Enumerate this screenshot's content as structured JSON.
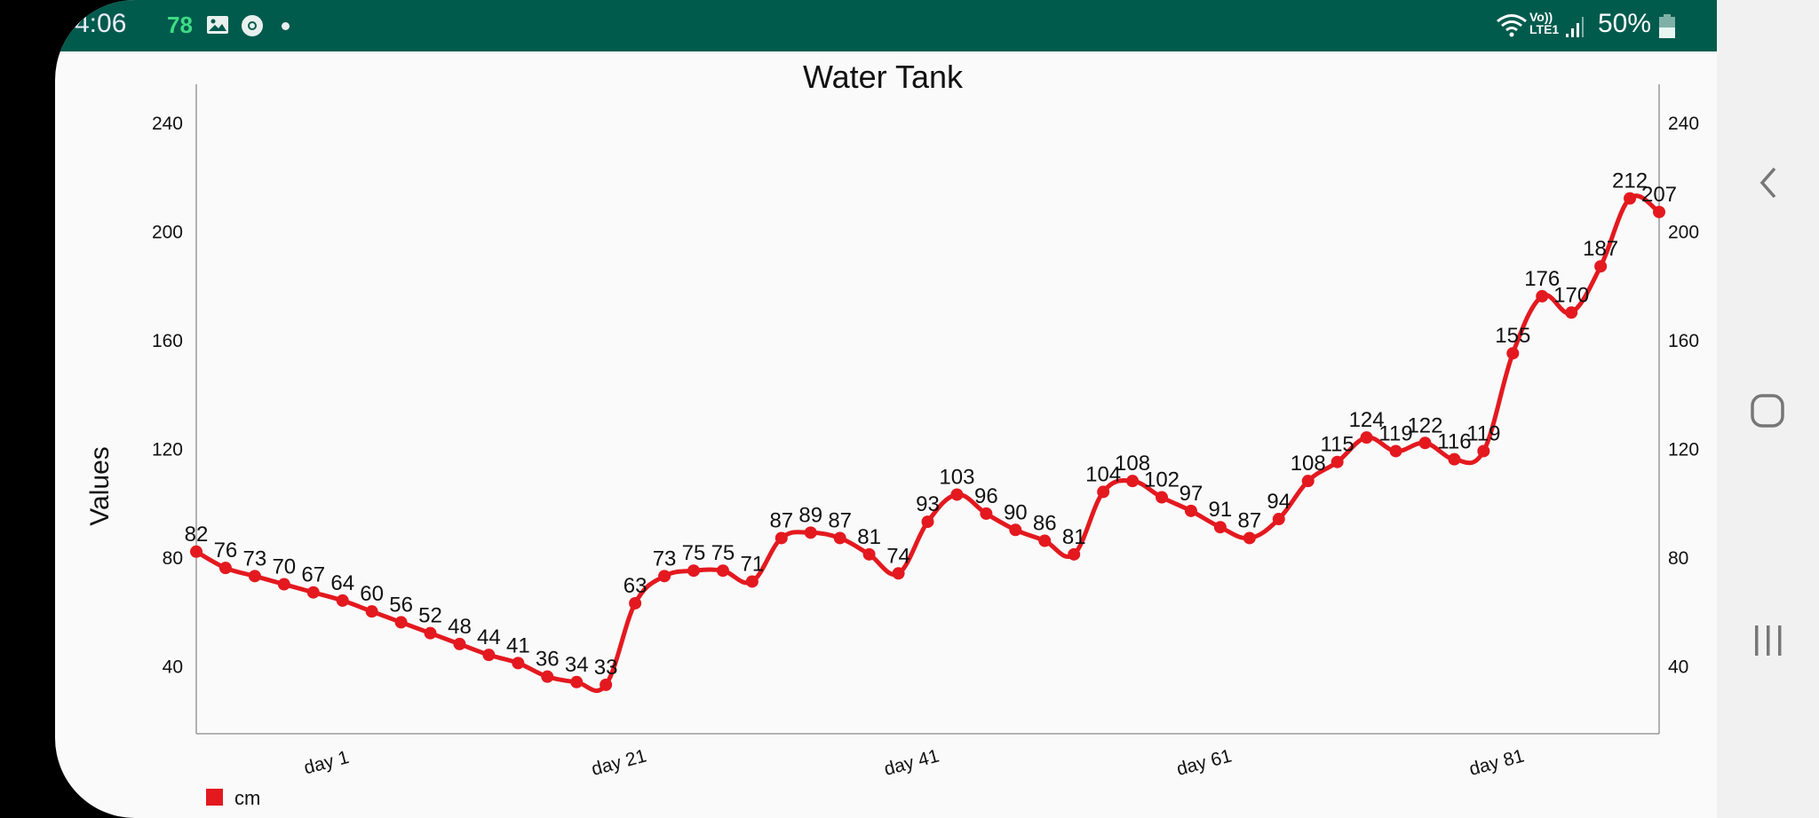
{
  "status_bar": {
    "time": "4:06",
    "notification_count": "78",
    "icons": [
      "gallery-icon",
      "chrome-icon",
      "dot-icon",
      "wifi-icon",
      "volte-lte-icon",
      "signal-icon",
      "battery-icon"
    ],
    "volte": "Vo))",
    "lte": "LTE1",
    "battery": "50%",
    "color": "#005b4d",
    "count_color": "#3ddc84"
  },
  "nav_bar": {
    "icons": [
      "back-icon",
      "home-icon",
      "recents-icon"
    ]
  },
  "chart_data": {
    "type": "line",
    "title": "Water Tank",
    "ylabel": "Values",
    "xlabel": "",
    "ylim": [
      15,
      254
    ],
    "y_ticks": [
      40,
      80,
      120,
      160,
      200,
      240
    ],
    "y_axis_right": true,
    "x_tick_labels": [
      "day 1",
      "day 21",
      "day 41",
      "day 61",
      "day 81"
    ],
    "grid": false,
    "legend": {
      "placement": "bottom-left",
      "entries": [
        {
          "name": "cm",
          "color": "#e3191f"
        }
      ]
    },
    "series": [
      {
        "name": "cm",
        "color": "#e3191f",
        "values": [
          82,
          76,
          73,
          70,
          67,
          64,
          60,
          56,
          52,
          48,
          44,
          41,
          36,
          34,
          33,
          63,
          73,
          75,
          75,
          71,
          87,
          89,
          87,
          81,
          74,
          93,
          103,
          96,
          90,
          86,
          81,
          104,
          108,
          102,
          97,
          91,
          87,
          94,
          108,
          115,
          124,
          119,
          122,
          116,
          119,
          155,
          176,
          170,
          187,
          212,
          207
        ]
      }
    ]
  }
}
